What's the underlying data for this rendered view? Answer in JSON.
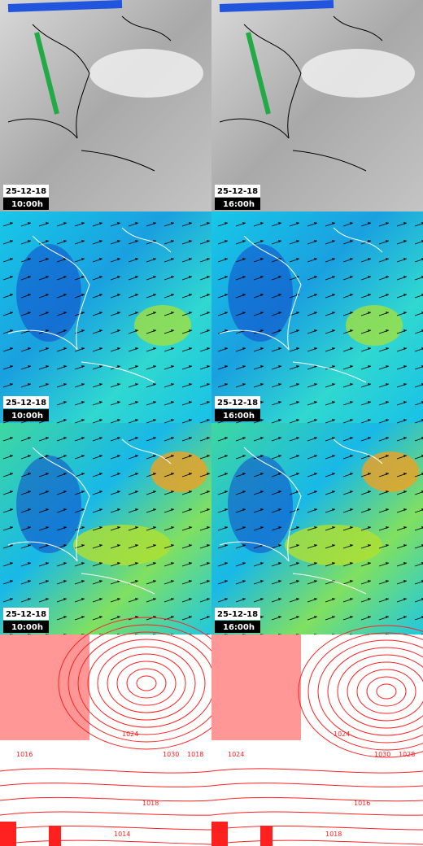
{
  "panels": [
    {
      "date": "25-12-18",
      "time": "10:00h"
    },
    {
      "date": "25-12-18",
      "time": "16:00h"
    },
    {
      "date": "25-12-18",
      "time": "10:00h"
    },
    {
      "date": "25-12-18",
      "time": "16:00h"
    },
    {
      "date": "25-12-18",
      "time": "10:00h"
    },
    {
      "date": "25-12-18",
      "time": "16:00h"
    }
  ],
  "pressure_panels": [
    {
      "isobar_labels": [
        "1024",
        "1030",
        "1018",
        "1016",
        "1018",
        "1014"
      ]
    },
    {
      "isobar_labels": [
        "1024",
        "1030",
        "1028",
        "1024",
        "1016",
        "1018"
      ]
    }
  ]
}
